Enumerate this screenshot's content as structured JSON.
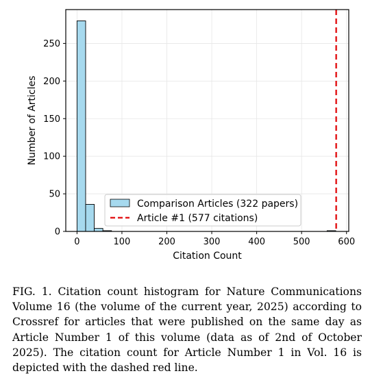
{
  "chart_data": {
    "type": "bar",
    "xlabel": "Citation Count",
    "ylabel": "Number of Articles",
    "xlim": [
      -25,
      605
    ],
    "ylim": [
      0,
      295
    ],
    "xticks": [
      0,
      100,
      200,
      300,
      400,
      500,
      600
    ],
    "yticks": [
      0,
      50,
      100,
      150,
      200,
      250
    ],
    "grid": true,
    "legend_position": "center-right",
    "bin_width": 19.2,
    "series": [
      {
        "name": "Comparison Articles (322 papers)",
        "color": "#a6d9ee",
        "bins": [
          {
            "x0": 0.0,
            "x1": 19.2,
            "count": 280
          },
          {
            "x0": 19.2,
            "x1": 38.4,
            "count": 36
          },
          {
            "x0": 38.4,
            "x1": 57.6,
            "count": 4
          },
          {
            "x0": 57.6,
            "x1": 76.8,
            "count": 1
          },
          {
            "x0": 556.8,
            "x1": 576.0,
            "count": 1
          }
        ]
      },
      {
        "name": "Article #1 (577 citations)",
        "type": "vline",
        "x": 577,
        "color": "#e31a1c"
      }
    ]
  },
  "caption": "FIG. 1. Citation count histogram for Nature Communications Volume 16 (the volume of the current year, 2025) according to Crossref for articles that were published on the same day as Article Number 1 of this volume (data as of 2nd of October 2025). The citation count for Article Number 1 in Vol. 16 is depicted with the dashed red line."
}
